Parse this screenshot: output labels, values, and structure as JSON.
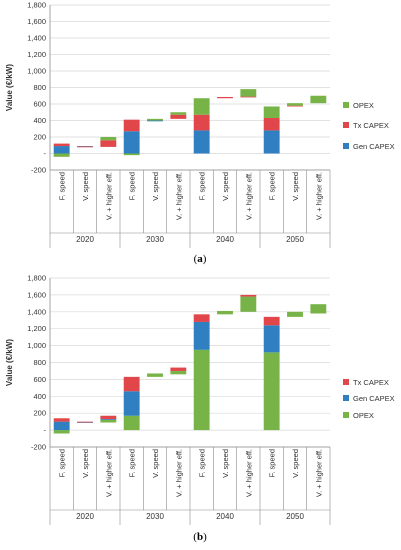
{
  "chart_data": [
    {
      "type": "waterfall-bar",
      "ylabel": "Value (€/kW)",
      "ylim": [
        -200,
        1800
      ],
      "yticks": [
        -200,
        0,
        200,
        400,
        600,
        800,
        1000,
        1200,
        1400,
        1600,
        1800
      ],
      "ytick_labels": [
        "-200",
        "-",
        "200",
        "400",
        "600",
        "800",
        "1,000",
        "1,200",
        "1,400",
        "1,600",
        "1,800"
      ],
      "groups": [
        "2020",
        "2030",
        "2040",
        "2050"
      ],
      "categories": [
        "F. speed",
        "V. speed",
        "V. + higher eff."
      ],
      "legend": [
        "OPEX",
        "Tx CAPEX",
        "Gen CAPEX"
      ],
      "legend_position": "right",
      "caption": "(a)",
      "bars": [
        {
          "group": "2020",
          "category": "F. speed",
          "segments": [
            {
              "series": "OPEX",
              "from": -40,
              "to": 0
            },
            {
              "series": "Gen CAPEX",
              "from": 0,
              "to": 90
            },
            {
              "series": "Tx CAPEX",
              "from": 90,
              "to": 120
            }
          ]
        },
        {
          "group": "2020",
          "category": "V. speed",
          "segments": [
            {
              "series": "Gen CAPEX",
              "from": 85,
              "to": 90
            },
            {
              "series": "Tx CAPEX",
              "from": 80,
              "to": 85
            }
          ]
        },
        {
          "group": "2020",
          "category": "V. + higher eff.",
          "segments": [
            {
              "series": "Tx CAPEX",
              "from": 80,
              "to": 160
            },
            {
              "series": "OPEX",
              "from": 160,
              "to": 200
            }
          ]
        },
        {
          "group": "2030",
          "category": "F. speed",
          "segments": [
            {
              "series": "OPEX",
              "from": -20,
              "to": 0
            },
            {
              "series": "Gen CAPEX",
              "from": 0,
              "to": 270
            },
            {
              "series": "Tx CAPEX",
              "from": 270,
              "to": 410
            }
          ]
        },
        {
          "group": "2030",
          "category": "V. speed",
          "segments": [
            {
              "series": "Gen CAPEX",
              "from": 390,
              "to": 400
            },
            {
              "series": "OPEX",
              "from": 400,
              "to": 420
            }
          ]
        },
        {
          "group": "2030",
          "category": "V. + higher eff.",
          "segments": [
            {
              "series": "Tx CAPEX",
              "from": 420,
              "to": 470
            },
            {
              "series": "OPEX",
              "from": 470,
              "to": 500
            }
          ]
        },
        {
          "group": "2040",
          "category": "F. speed",
          "segments": [
            {
              "series": "Gen CAPEX",
              "from": 0,
              "to": 280
            },
            {
              "series": "Tx CAPEX",
              "from": 280,
              "to": 470
            },
            {
              "series": "OPEX",
              "from": 470,
              "to": 670
            }
          ]
        },
        {
          "group": "2040",
          "category": "V. speed",
          "segments": [
            {
              "series": "Tx CAPEX",
              "from": 670,
              "to": 685
            }
          ]
        },
        {
          "group": "2040",
          "category": "V. + higher eff.",
          "segments": [
            {
              "series": "Tx CAPEX",
              "from": 680,
              "to": 690
            },
            {
              "series": "OPEX",
              "from": 690,
              "to": 780
            }
          ]
        },
        {
          "group": "2050",
          "category": "F. speed",
          "segments": [
            {
              "series": "Gen CAPEX",
              "from": 0,
              "to": 280
            },
            {
              "series": "Tx CAPEX",
              "from": 280,
              "to": 430
            },
            {
              "series": "OPEX",
              "from": 430,
              "to": 570
            }
          ]
        },
        {
          "group": "2050",
          "category": "V. speed",
          "segments": [
            {
              "series": "Tx CAPEX",
              "from": 570,
              "to": 580
            },
            {
              "series": "OPEX",
              "from": 580,
              "to": 610
            }
          ]
        },
        {
          "group": "2050",
          "category": "V. + higher eff.",
          "segments": [
            {
              "series": "OPEX",
              "from": 610,
              "to": 700
            }
          ]
        }
      ]
    },
    {
      "type": "waterfall-bar",
      "ylabel": "Value (€/kW)",
      "ylim": [
        -200,
        1800
      ],
      "yticks": [
        -200,
        0,
        200,
        400,
        600,
        800,
        1000,
        1200,
        1400,
        1600,
        1800
      ],
      "ytick_labels": [
        "-200",
        "-",
        "200",
        "400",
        "600",
        "800",
        "1,000",
        "1,200",
        "1,400",
        "1,600",
        "1,800"
      ],
      "groups": [
        "2020",
        "2030",
        "2040",
        "2050"
      ],
      "categories": [
        "F. speed",
        "V. speed",
        "V. + higher eff."
      ],
      "legend": [
        "Tx CAPEX",
        "Gen CAPEX",
        "OPEX"
      ],
      "legend_position": "right",
      "caption": "(b)",
      "bars": [
        {
          "group": "2020",
          "category": "F. speed",
          "segments": [
            {
              "series": "OPEX",
              "from": -40,
              "to": 0
            },
            {
              "series": "Gen CAPEX",
              "from": 0,
              "to": 100
            },
            {
              "series": "Tx CAPEX",
              "from": 100,
              "to": 140
            }
          ]
        },
        {
          "group": "2020",
          "category": "V. speed",
          "segments": [
            {
              "series": "Gen CAPEX",
              "from": 90,
              "to": 95
            },
            {
              "series": "Tx CAPEX",
              "from": 95,
              "to": 100
            }
          ]
        },
        {
          "group": "2020",
          "category": "V. + higher eff.",
          "segments": [
            {
              "series": "OPEX",
              "from": 90,
              "to": 120
            },
            {
              "series": "Gen CAPEX",
              "from": 120,
              "to": 130
            },
            {
              "series": "Tx CAPEX",
              "from": 130,
              "to": 170
            }
          ]
        },
        {
          "group": "2030",
          "category": "F. speed",
          "segments": [
            {
              "series": "OPEX",
              "from": 0,
              "to": 170
            },
            {
              "series": "Gen CAPEX",
              "from": 170,
              "to": 460
            },
            {
              "series": "Tx CAPEX",
              "from": 460,
              "to": 630
            }
          ]
        },
        {
          "group": "2030",
          "category": "V. speed",
          "segments": [
            {
              "series": "OPEX",
              "from": 630,
              "to": 670
            }
          ]
        },
        {
          "group": "2030",
          "category": "V. + higher eff.",
          "segments": [
            {
              "series": "OPEX",
              "from": 660,
              "to": 700
            },
            {
              "series": "Tx CAPEX",
              "from": 700,
              "to": 740
            }
          ]
        },
        {
          "group": "2040",
          "category": "F. speed",
          "segments": [
            {
              "series": "OPEX",
              "from": 0,
              "to": 950
            },
            {
              "series": "Gen CAPEX",
              "from": 950,
              "to": 1280
            },
            {
              "series": "Tx CAPEX",
              "from": 1280,
              "to": 1370
            }
          ]
        },
        {
          "group": "2040",
          "category": "V. speed",
          "segments": [
            {
              "series": "OPEX",
              "from": 1370,
              "to": 1410
            }
          ]
        },
        {
          "group": "2040",
          "category": "V. + higher eff.",
          "segments": [
            {
              "series": "OPEX",
              "from": 1400,
              "to": 1580
            },
            {
              "series": "Tx CAPEX",
              "from": 1580,
              "to": 1600
            }
          ]
        },
        {
          "group": "2050",
          "category": "F. speed",
          "segments": [
            {
              "series": "OPEX",
              "from": 0,
              "to": 920
            },
            {
              "series": "Gen CAPEX",
              "from": 920,
              "to": 1240
            },
            {
              "series": "Tx CAPEX",
              "from": 1240,
              "to": 1340
            }
          ]
        },
        {
          "group": "2050",
          "category": "V. speed",
          "segments": [
            {
              "series": "OPEX",
              "from": 1340,
              "to": 1400
            }
          ]
        },
        {
          "group": "2050",
          "category": "V. + higher eff.",
          "segments": [
            {
              "series": "OPEX",
              "from": 1380,
              "to": 1490
            }
          ]
        }
      ]
    }
  ],
  "colors": {
    "OPEX": "#77b347",
    "Tx CAPEX": "#e0464a",
    "Gen CAPEX": "#2f7fc1",
    "grid": "#d9d9d9",
    "axis": "#8c8c8c"
  }
}
